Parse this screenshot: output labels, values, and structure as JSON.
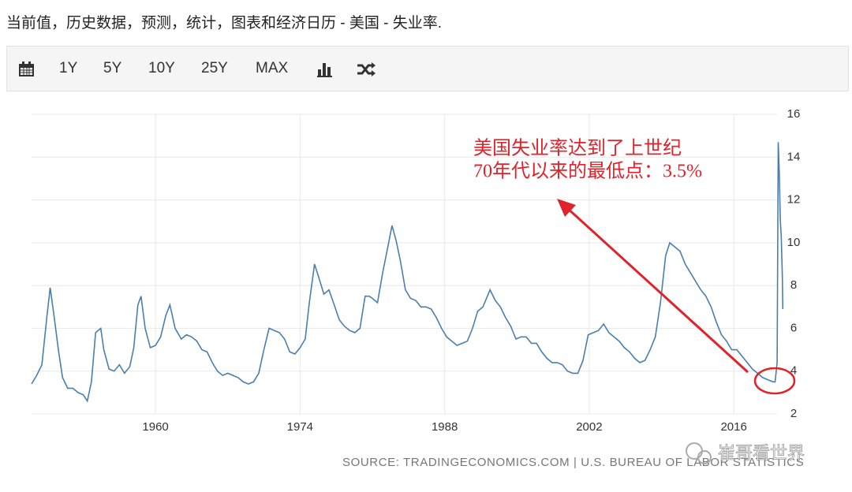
{
  "page_title": "当前值，历史数据，预测，统计，图表和经济日历 - 美国 - 失业率.",
  "toolbar": [
    "1Y",
    "5Y",
    "10Y",
    "25Y",
    "MAX"
  ],
  "chart_data": {
    "type": "line",
    "x": [
      1948.0,
      1948.5,
      1949.0,
      1949.5,
      1949.8,
      1950.2,
      1950.6,
      1951.0,
      1951.5,
      1952.0,
      1952.5,
      1953.0,
      1953.4,
      1953.8,
      1954.2,
      1954.7,
      1955.0,
      1955.5,
      1956.0,
      1956.5,
      1957.0,
      1957.5,
      1957.9,
      1958.3,
      1958.6,
      1959.0,
      1959.5,
      1960.0,
      1960.5,
      1961.0,
      1961.4,
      1961.9,
      1962.5,
      1963.0,
      1963.5,
      1964.0,
      1964.5,
      1965.0,
      1965.5,
      1966.0,
      1966.5,
      1967.0,
      1967.5,
      1968.0,
      1968.5,
      1969.0,
      1969.5,
      1970.0,
      1970.5,
      1971.0,
      1971.5,
      1972.0,
      1972.5,
      1973.0,
      1973.5,
      1974.0,
      1974.5,
      1974.9,
      1975.4,
      1975.8,
      1976.3,
      1976.8,
      1977.3,
      1977.8,
      1978.3,
      1978.8,
      1979.3,
      1979.8,
      1980.3,
      1980.7,
      1981.0,
      1981.5,
      1982.0,
      1982.5,
      1982.9,
      1983.3,
      1983.7,
      1984.2,
      1984.7,
      1985.2,
      1985.7,
      1986.2,
      1986.7,
      1987.2,
      1987.7,
      1988.2,
      1988.7,
      1989.2,
      1989.7,
      1990.2,
      1990.7,
      1991.2,
      1991.7,
      1992.4,
      1992.9,
      1993.4,
      1993.9,
      1994.4,
      1994.9,
      1995.4,
      1995.9,
      1996.4,
      1996.9,
      1997.4,
      1997.9,
      1998.4,
      1998.9,
      1999.4,
      1999.9,
      2000.4,
      2000.9,
      2001.4,
      2001.9,
      2002.4,
      2002.9,
      2003.4,
      2003.9,
      2004.4,
      2004.9,
      2005.4,
      2005.9,
      2006.4,
      2006.9,
      2007.4,
      2007.9,
      2008.4,
      2008.9,
      2009.4,
      2009.8,
      2010.3,
      2010.8,
      2011.3,
      2011.8,
      2012.3,
      2012.8,
      2013.3,
      2013.8,
      2014.3,
      2014.8,
      2015.3,
      2015.8,
      2016.3,
      2016.8,
      2017.3,
      2017.8,
      2018.3,
      2018.8,
      2019.3,
      2019.8,
      2020.0,
      2020.2,
      2020.3,
      2020.4,
      2020.5,
      2020.6,
      2020.7,
      2020.75
    ],
    "series": [
      {
        "color": "#4a7fad",
        "values": [
          3.4,
          3.8,
          4.3,
          6.6,
          7.9,
          6.5,
          5.0,
          3.7,
          3.2,
          3.2,
          3.0,
          2.9,
          2.6,
          3.5,
          5.8,
          6.0,
          5.0,
          4.1,
          4.0,
          4.3,
          3.9,
          4.2,
          5.1,
          7.1,
          7.5,
          6.0,
          5.1,
          5.2,
          5.6,
          6.6,
          7.1,
          6.0,
          5.5,
          5.7,
          5.6,
          5.4,
          5.0,
          4.9,
          4.4,
          4.0,
          3.8,
          3.9,
          3.8,
          3.7,
          3.5,
          3.4,
          3.5,
          3.9,
          5.0,
          6.0,
          5.9,
          5.8,
          5.5,
          4.9,
          4.8,
          5.1,
          5.5,
          7.2,
          9.0,
          8.4,
          7.6,
          7.8,
          7.1,
          6.4,
          6.1,
          5.9,
          5.8,
          6.0,
          7.5,
          7.5,
          7.4,
          7.2,
          8.6,
          9.8,
          10.8,
          10.1,
          9.2,
          7.8,
          7.4,
          7.3,
          7.0,
          7.0,
          6.9,
          6.5,
          6.0,
          5.6,
          5.4,
          5.2,
          5.3,
          5.4,
          6.0,
          6.8,
          7.0,
          7.8,
          7.3,
          7.0,
          6.5,
          6.1,
          5.5,
          5.6,
          5.6,
          5.3,
          5.3,
          4.9,
          4.6,
          4.4,
          4.4,
          4.3,
          4.0,
          3.9,
          3.9,
          4.5,
          5.7,
          5.8,
          5.9,
          6.2,
          5.8,
          5.6,
          5.4,
          5.1,
          4.9,
          4.6,
          4.4,
          4.5,
          5.0,
          5.6,
          7.2,
          9.4,
          10.0,
          9.8,
          9.6,
          9.0,
          8.6,
          8.2,
          7.8,
          7.5,
          7.0,
          6.3,
          5.7,
          5.4,
          5.0,
          5.0,
          4.7,
          4.4,
          4.1,
          3.9,
          3.7,
          3.6,
          3.5,
          3.5,
          4.4,
          14.7,
          13.3,
          11.1,
          10.2,
          8.4,
          6.9
        ]
      }
    ],
    "xlim": [
      1948,
      2020.8
    ],
    "xticks": [
      1960,
      1974,
      1988,
      2002,
      2016
    ],
    "ylim": [
      2,
      16
    ],
    "yticks": [
      2,
      4,
      6,
      8,
      10,
      12,
      14,
      16
    ],
    "grid": true,
    "annotation": [
      "美国失业率达到了上世纪",
      "70年代以来的最低点：3.5%"
    ],
    "source": "SOURCE: TRADINGECONOMICS.COM | U.S. BUREAU OF LABOR STATISTICS"
  },
  "watermark": "崔哥看世界"
}
